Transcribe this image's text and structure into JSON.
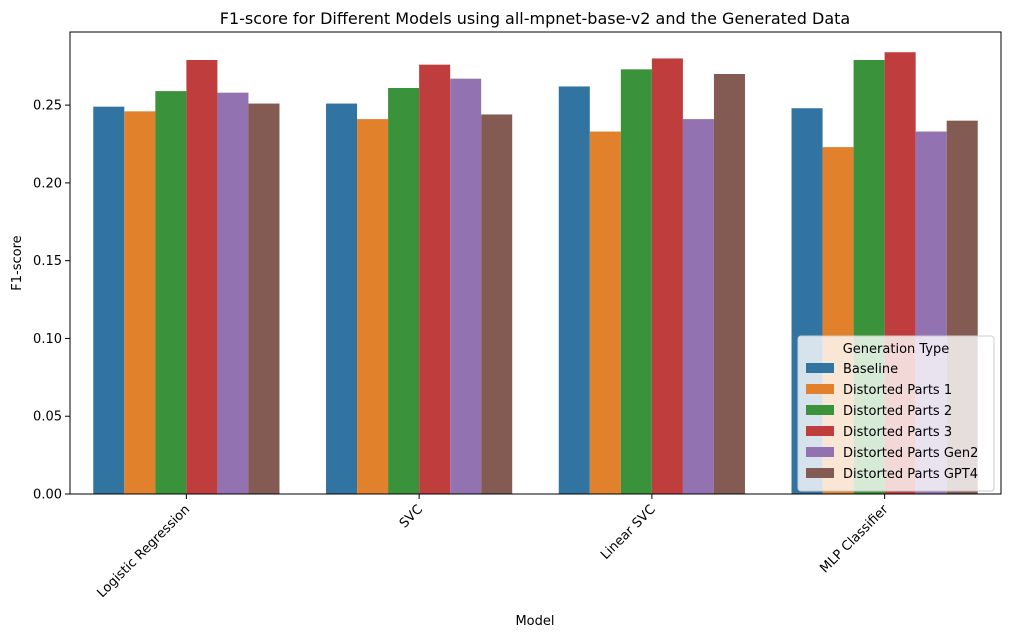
{
  "chart_data": {
    "type": "bar",
    "title": "F1-score for Different Models using all-mpnet-base-v2 and the Generated Data",
    "xlabel": "Model",
    "ylabel": "F1-score",
    "ylim": [
      0,
      0.297
    ],
    "yticks": [
      "0.00",
      "0.05",
      "0.10",
      "0.15",
      "0.20",
      "0.25"
    ],
    "grid": false,
    "legend_title": "Generation Type",
    "legend_position": "lower right",
    "categories": [
      "Logistic Regression",
      "SVC",
      "Linear SVC",
      "MLP Classifier"
    ],
    "series": [
      {
        "name": "Baseline",
        "color": "#3274a1",
        "values": [
          0.249,
          0.251,
          0.262,
          0.248
        ]
      },
      {
        "name": "Distorted Parts 1",
        "color": "#e1812c",
        "values": [
          0.246,
          0.241,
          0.233,
          0.223
        ]
      },
      {
        "name": "Distorted Parts 2",
        "color": "#3a923a",
        "values": [
          0.259,
          0.261,
          0.273,
          0.279
        ]
      },
      {
        "name": "Distorted Parts 3",
        "color": "#c03d3e",
        "values": [
          0.279,
          0.276,
          0.28,
          0.284
        ]
      },
      {
        "name": "Distorted Parts Gen2",
        "color": "#9372b2",
        "values": [
          0.258,
          0.267,
          0.241,
          0.233
        ]
      },
      {
        "name": "Distorted Parts GPT4",
        "color": "#845b53",
        "values": [
          0.251,
          0.244,
          0.27,
          0.24
        ]
      }
    ]
  }
}
